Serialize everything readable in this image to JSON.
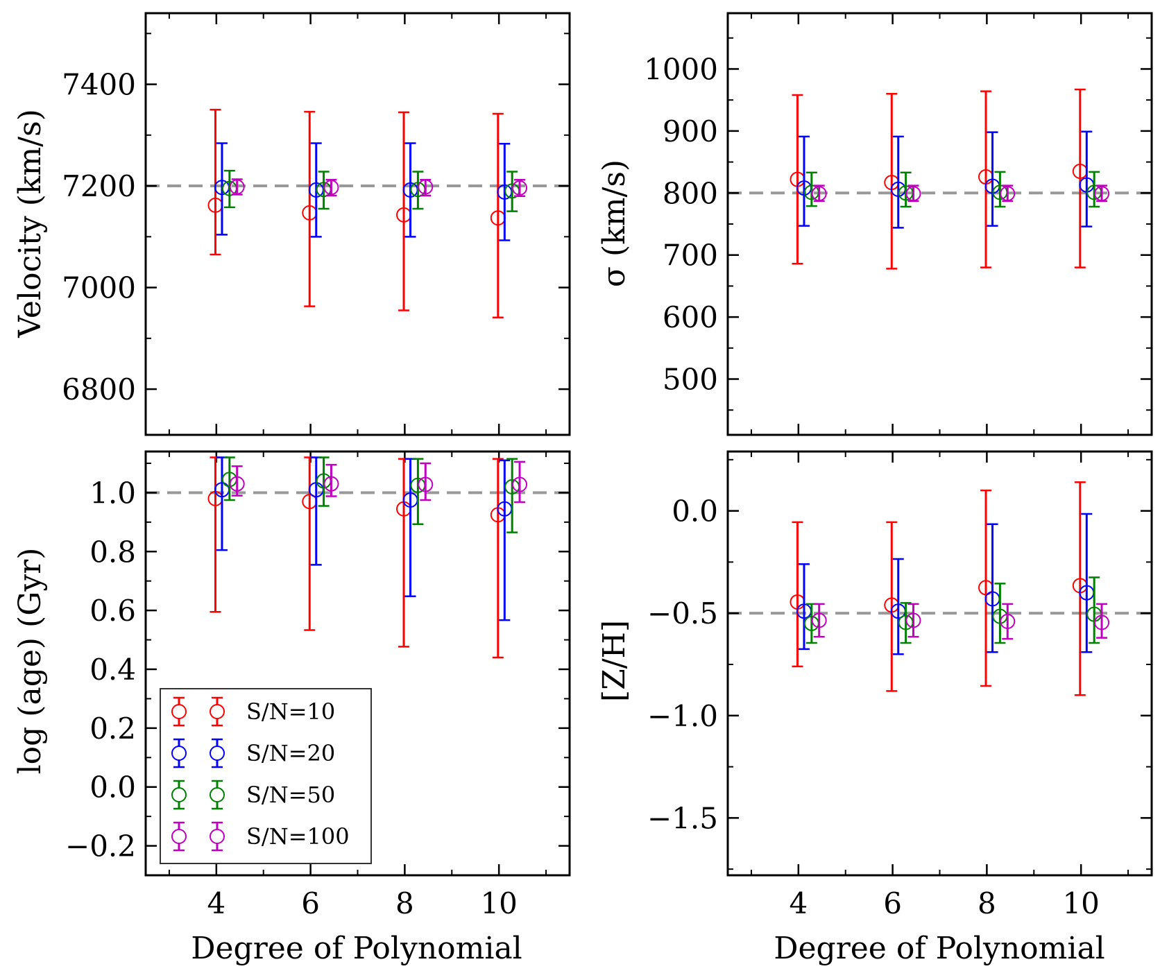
{
  "legend": [
    {
      "label": "S/N=10",
      "color": "#ff0000"
    },
    {
      "label": "S/N=20",
      "color": "#0000ff"
    },
    {
      "label": "S/N=50",
      "color": "#008000"
    },
    {
      "label": "S/N=100",
      "color": "#bf00bf"
    }
  ],
  "chart_data": [
    {
      "type": "errorbar",
      "panel": "top-left",
      "xlabel": "",
      "ylabel": "Velocity (km/s)",
      "xlim": [
        2.5,
        11.5
      ],
      "ylim": [
        6710,
        7540
      ],
      "xticks": [
        4,
        6,
        8,
        10
      ],
      "xtick_labels": [
        "",
        "",
        "",
        ""
      ],
      "yticks": [
        6800,
        7000,
        7200,
        7400
      ],
      "ytick_labels": [
        "6800",
        "7000",
        "7200",
        "7400"
      ],
      "reference_line": 7200,
      "x": [
        4,
        6,
        8,
        10
      ],
      "series": [
        {
          "name": "S/N=10",
          "x_offset": -0.02,
          "values": [
            7162,
            7147,
            7143,
            7137
          ],
          "err_low": [
            7065,
            6963,
            6955,
            6941
          ],
          "err_high": [
            7350,
            7346,
            7345,
            7342
          ]
        },
        {
          "name": "S/N=20",
          "x_offset": 0.12,
          "values": [
            7197,
            7192,
            7192,
            7188
          ],
          "err_low": [
            7104,
            7100,
            7100,
            7093
          ],
          "err_high": [
            7284,
            7284,
            7284,
            7283
          ]
        },
        {
          "name": "S/N=50",
          "x_offset": 0.28,
          "values": [
            7195,
            7193,
            7193,
            7190
          ],
          "err_low": [
            7158,
            7155,
            7155,
            7150
          ],
          "err_high": [
            7230,
            7228,
            7228,
            7228
          ]
        },
        {
          "name": "S/N=100",
          "x_offset": 0.44,
          "values": [
            7198,
            7197,
            7198,
            7196
          ],
          "err_low": [
            7183,
            7181,
            7181,
            7180
          ],
          "err_high": [
            7213,
            7212,
            7212,
            7212
          ]
        }
      ]
    },
    {
      "type": "errorbar",
      "panel": "top-right",
      "xlabel": "",
      "ylabel": "σ (km/s)",
      "xlim": [
        2.5,
        11.5
      ],
      "ylim": [
        410,
        1090
      ],
      "xticks": [
        4,
        6,
        8,
        10
      ],
      "xtick_labels": [
        "",
        "",
        "",
        ""
      ],
      "yticks": [
        500,
        600,
        700,
        800,
        900,
        1000
      ],
      "ytick_labels": [
        "500",
        "600",
        "700",
        "800",
        "900",
        "1000"
      ],
      "reference_line": 800,
      "x": [
        4,
        6,
        8,
        10
      ],
      "series": [
        {
          "name": "S/N=10",
          "x_offset": -0.02,
          "values": [
            822,
            817,
            826,
            835
          ],
          "err_low": [
            686,
            678,
            680,
            680
          ],
          "err_high": [
            958,
            960,
            964,
            967
          ]
        },
        {
          "name": "S/N=20",
          "x_offset": 0.12,
          "values": [
            808,
            806,
            811,
            813
          ],
          "err_low": [
            747,
            744,
            747,
            746
          ],
          "err_high": [
            891,
            891,
            898,
            899
          ]
        },
        {
          "name": "S/N=50",
          "x_offset": 0.28,
          "values": [
            801,
            800,
            801,
            801
          ],
          "err_low": [
            779,
            778,
            778,
            778
          ],
          "err_high": [
            833,
            833,
            834,
            834
          ]
        },
        {
          "name": "S/N=100",
          "x_offset": 0.44,
          "values": [
            799,
            799,
            799,
            799
          ],
          "err_low": [
            787,
            787,
            787,
            787
          ],
          "err_high": [
            812,
            812,
            812,
            812
          ]
        }
      ]
    },
    {
      "type": "errorbar",
      "panel": "bottom-left",
      "xlabel": "Degree of Polynomial",
      "ylabel": "log (age) (Gyr)",
      "xlim": [
        2.5,
        11.5
      ],
      "ylim": [
        -0.3,
        1.14
      ],
      "xticks": [
        4,
        6,
        8,
        10
      ],
      "xtick_labels": [
        "4",
        "6",
        "8",
        "10"
      ],
      "yticks": [
        -0.2,
        0.0,
        0.2,
        0.4,
        0.6,
        0.8,
        1.0
      ],
      "ytick_labels": [
        "−0.2",
        "0.0",
        "0.2",
        "0.4",
        "0.6",
        "0.8",
        "1.0"
      ],
      "reference_line": 1.0,
      "x": [
        4,
        6,
        8,
        10
      ],
      "series": [
        {
          "name": "S/N=10",
          "x_offset": -0.02,
          "values": [
            0.98,
            0.97,
            0.945,
            0.925
          ],
          "err_low": [
            0.595,
            0.533,
            0.477,
            0.44
          ],
          "err_high": [
            1.12,
            1.12,
            1.115,
            1.115
          ]
        },
        {
          "name": "S/N=20",
          "x_offset": 0.12,
          "values": [
            1.01,
            1.01,
            0.975,
            0.945
          ],
          "err_low": [
            0.805,
            0.755,
            0.648,
            0.567
          ],
          "err_high": [
            1.12,
            1.12,
            1.115,
            1.11
          ]
        },
        {
          "name": "S/N=50",
          "x_offset": 0.28,
          "values": [
            1.045,
            1.04,
            1.025,
            1.02
          ],
          "err_low": [
            0.975,
            0.955,
            0.893,
            0.865
          ],
          "err_high": [
            1.12,
            1.12,
            1.115,
            1.115
          ]
        },
        {
          "name": "S/N=100",
          "x_offset": 0.44,
          "values": [
            1.03,
            1.03,
            1.028,
            1.028
          ],
          "err_low": [
            0.99,
            0.988,
            0.975,
            0.968
          ],
          "err_high": [
            1.09,
            1.095,
            1.1,
            1.105
          ]
        }
      ]
    },
    {
      "type": "errorbar",
      "panel": "bottom-right",
      "xlabel": "Degree of Polynomial",
      "ylabel": "[Z/H]",
      "xlim": [
        2.5,
        11.5
      ],
      "ylim": [
        -1.78,
        0.29
      ],
      "xticks": [
        4,
        6,
        8,
        10
      ],
      "xtick_labels": [
        "4",
        "6",
        "8",
        "10"
      ],
      "yticks": [
        -1.5,
        -1.0,
        -0.5,
        0.0
      ],
      "ytick_labels": [
        "−1.5",
        "−1.0",
        "−0.5",
        "0.0"
      ],
      "reference_line": -0.5,
      "x": [
        4,
        6,
        8,
        10
      ],
      "series": [
        {
          "name": "S/N=10",
          "x_offset": -0.02,
          "values": [
            -0.445,
            -0.46,
            -0.375,
            -0.365
          ],
          "err_low": [
            -0.76,
            -0.88,
            -0.855,
            -0.9
          ],
          "err_high": [
            -0.055,
            -0.055,
            0.1,
            0.14
          ]
        },
        {
          "name": "S/N=20",
          "x_offset": 0.12,
          "values": [
            -0.49,
            -0.49,
            -0.43,
            -0.4
          ],
          "err_low": [
            -0.675,
            -0.7,
            -0.69,
            -0.69
          ],
          "err_high": [
            -0.26,
            -0.235,
            -0.065,
            -0.015
          ]
        },
        {
          "name": "S/N=50",
          "x_offset": 0.28,
          "values": [
            -0.55,
            -0.545,
            -0.515,
            -0.505
          ],
          "err_low": [
            -0.645,
            -0.645,
            -0.645,
            -0.645
          ],
          "err_high": [
            -0.455,
            -0.45,
            -0.355,
            -0.325
          ]
        },
        {
          "name": "S/N=100",
          "x_offset": 0.44,
          "values": [
            -0.535,
            -0.535,
            -0.54,
            -0.545
          ],
          "err_low": [
            -0.615,
            -0.615,
            -0.625,
            -0.62
          ],
          "err_high": [
            -0.455,
            -0.455,
            -0.455,
            -0.455
          ]
        }
      ]
    }
  ]
}
